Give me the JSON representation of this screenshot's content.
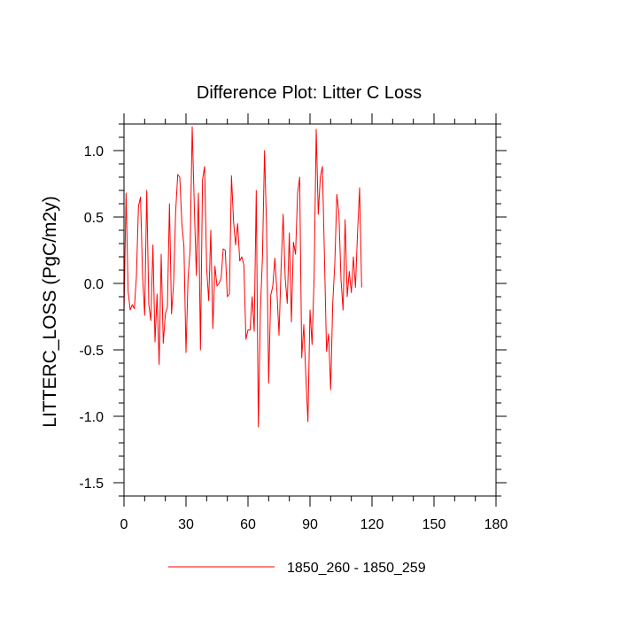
{
  "chart_data": {
    "type": "line",
    "title": "Difference Plot: Litter C Loss",
    "xlabel": "",
    "ylabel": "LITTERC_LOSS  (PgC/m2y)",
    "xlim": [
      0,
      180
    ],
    "ylim": [
      -1.6,
      1.2
    ],
    "x_ticks": [
      0,
      30,
      60,
      90,
      120,
      150,
      180
    ],
    "x_tick_labels": [
      "0",
      "30",
      "60",
      "90",
      "120",
      "150",
      "180"
    ],
    "y_ticks": [
      -1.5,
      -1.0,
      -0.5,
      0.0,
      0.5,
      1.0
    ],
    "y_tick_labels": [
      "-1.5",
      "-1.0",
      "-0.5",
      "0.0",
      "0.5",
      "1.0"
    ],
    "grid": false,
    "legend_position": "bottom-center",
    "series": [
      {
        "name": "1850_260 - 1850_259",
        "color": "#ff0000",
        "x_start": 0,
        "x_step": 1,
        "values": [
          -0.23,
          0.68,
          -0.06,
          -0.2,
          -0.16,
          -0.19,
          0.05,
          0.58,
          0.65,
          0.05,
          -0.24,
          0.7,
          -0.16,
          -0.28,
          0.29,
          -0.44,
          -0.08,
          -0.61,
          0.22,
          -0.45,
          -0.23,
          -0.18,
          0.6,
          -0.23,
          0.0,
          0.54,
          0.82,
          0.8,
          0.45,
          0.28,
          -0.52,
          0.04,
          0.26,
          1.18,
          0.59,
          0.06,
          0.68,
          -0.5,
          0.78,
          0.88,
          0.11,
          -0.13,
          0.4,
          -0.34,
          0.13,
          -0.02,
          0.0,
          0.04,
          0.26,
          0.25,
          -0.1,
          -0.08,
          0.81,
          0.47,
          0.29,
          0.45,
          0.17,
          0.2,
          0.14,
          -0.42,
          -0.35,
          -0.35,
          -0.1,
          -0.36,
          0.7,
          -1.08,
          -0.2,
          0.2,
          1.0,
          0.41,
          -0.75,
          -0.09,
          -0.02,
          0.19,
          -0.06,
          -0.39,
          0.11,
          0.52,
          0.04,
          -0.15,
          0.38,
          -0.29,
          0.31,
          0.22,
          0.68,
          0.8,
          -0.56,
          -0.31,
          -0.7,
          -1.04,
          -0.2,
          -0.46,
          0.05,
          1.16,
          0.52,
          0.8,
          0.88,
          0.2,
          -0.51,
          -0.38,
          -0.8,
          -0.15,
          0.15,
          0.67,
          0.52,
          0.03,
          -0.2,
          0.48,
          -0.1,
          0.09,
          -0.07,
          0.2,
          -0.03,
          0.38,
          0.72,
          -0.03
        ]
      }
    ]
  }
}
